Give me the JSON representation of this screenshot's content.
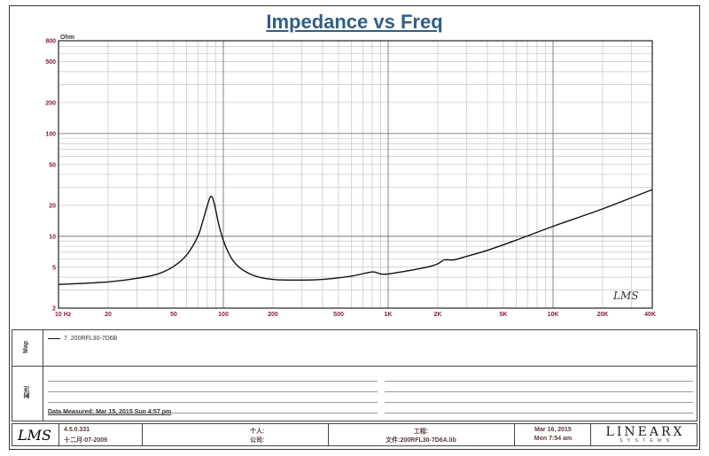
{
  "title": "Impedance vs Freq",
  "chart_data": {
    "type": "line",
    "title": "Impedance vs Freq",
    "ylabel": "Ohm",
    "xscale": "log",
    "yscale": "log",
    "xlim": [
      10,
      40000
    ],
    "ylim": [
      2,
      800
    ],
    "grid": true,
    "x_ticks": [
      {
        "v": 10,
        "label": "10  Hz"
      },
      {
        "v": 20,
        "label": "20"
      },
      {
        "v": 50,
        "label": "50"
      },
      {
        "v": 100,
        "label": "100"
      },
      {
        "v": 200,
        "label": "200"
      },
      {
        "v": 500,
        "label": "500"
      },
      {
        "v": 1000,
        "label": "1K"
      },
      {
        "v": 2000,
        "label": "2K"
      },
      {
        "v": 5000,
        "label": "5K"
      },
      {
        "v": 10000,
        "label": "10K"
      },
      {
        "v": 20000,
        "label": "20K"
      },
      {
        "v": 40000,
        "label": "40K"
      }
    ],
    "y_ticks": [
      {
        "v": 800,
        "label": "800"
      },
      {
        "v": 500,
        "label": "500"
      },
      {
        "v": 200,
        "label": "200"
      },
      {
        "v": 100,
        "label": "100"
      },
      {
        "v": 50,
        "label": "50"
      },
      {
        "v": 20,
        "label": "20"
      },
      {
        "v": 10,
        "label": "10"
      },
      {
        "v": 5,
        "label": "5"
      },
      {
        "v": 2,
        "label": "2"
      }
    ],
    "series": [
      {
        "name": "7. 200RFL30-7D6B",
        "color": "#111111",
        "x": [
          10,
          20,
          30,
          40,
          50,
          60,
          70,
          75,
          80,
          84,
          88,
          95,
          105,
          120,
          150,
          200,
          300,
          400,
          600,
          800,
          900,
          1000,
          1200,
          1500,
          1800,
          2000,
          2200,
          2500,
          3000,
          4000,
          6000,
          10000,
          20000,
          40000
        ],
        "y": [
          3.4,
          3.6,
          3.9,
          4.3,
          5.1,
          6.6,
          10,
          14,
          20,
          24.5,
          21,
          12,
          7.5,
          5.3,
          4.2,
          3.8,
          3.75,
          3.8,
          4.1,
          4.5,
          4.3,
          4.3,
          4.5,
          4.8,
          5.1,
          5.4,
          5.9,
          5.9,
          6.4,
          7.3,
          9.2,
          12.5,
          18.5,
          28.5
        ]
      }
    ],
    "watermark": "LMS"
  },
  "map_panel": {
    "label": "Map",
    "legend_entry": "7. 200RFL30-7D6B"
  },
  "notes_panel": {
    "label": "附注",
    "date_measured": "Data Measured: Mar 15, 2015  Sun  4:57 pm"
  },
  "footer": {
    "logo": "LMS",
    "version": "4.5.0.331",
    "version_date": "十二月-07-2009",
    "person_label": "个人:",
    "company_label": "公司:",
    "project_label": "工程:",
    "file_label": "文件:200RFL30-7D6A.lib",
    "date_line1": "Mar 16, 2015",
    "date_line2": "Mon  7:54 am",
    "brand": "LINEARX",
    "brand_sub": "S Y S T E M S"
  }
}
